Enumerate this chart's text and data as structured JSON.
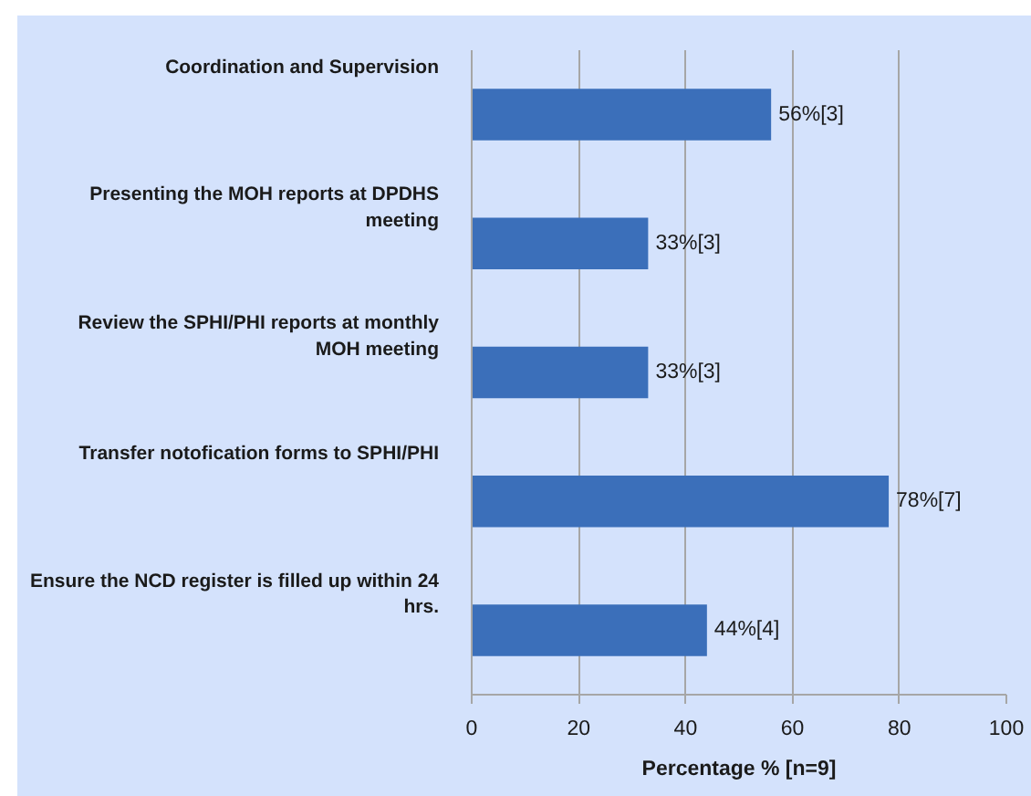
{
  "chart_data": {
    "type": "bar",
    "orientation": "horizontal",
    "categories": [
      "Coordination and Supervision",
      "Presenting the MOH reports at DPDHS meeting",
      "Review the SPHI/PHI reports at monthly MOH meeting",
      "Transfer notofication forms to SPHI/PHI",
      "Ensure the NCD register is filled up within 24 hrs."
    ],
    "values": [
      56,
      33,
      33,
      78,
      44
    ],
    "color": "#3b6fba",
    "value_labels": [
      "56%[3]",
      "33%[3]",
      "33%[3]",
      "78%[7]",
      "44%[4]"
    ],
    "xlabel": "Percentage % [n=9]",
    "xlim": [
      0,
      100
    ],
    "xticks": [
      0,
      20,
      40,
      60,
      80,
      100
    ],
    "grid": "x"
  }
}
